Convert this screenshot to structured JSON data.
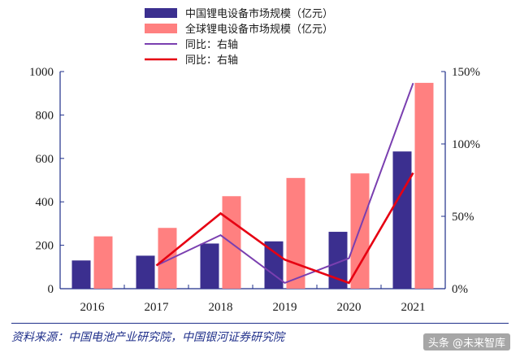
{
  "chart_data": {
    "type": "bar",
    "categories": [
      "2016",
      "2017",
      "2018",
      "2019",
      "2020",
      "2021"
    ],
    "series": [
      {
        "name": "中国锂电设备市场规模（亿元）",
        "type": "bar",
        "axis": "left",
        "color": "#3b2f8f",
        "values": [
          130,
          152,
          208,
          218,
          262,
          632
        ]
      },
      {
        "name": "全球锂电设备市场规模（亿元）",
        "type": "bar",
        "axis": "left",
        "color": "#ff8080",
        "values": [
          241,
          280,
          426,
          510,
          531,
          948
        ]
      },
      {
        "name": "同比：右轴",
        "type": "line",
        "axis": "right",
        "color": "#7a3fb0",
        "values": [
          null,
          16,
          37,
          4,
          21,
          142
        ]
      },
      {
        "name": "同比：右轴",
        "type": "line",
        "axis": "right",
        "color": "#e60012",
        "values": [
          null,
          16,
          52,
          20,
          4,
          80
        ]
      }
    ],
    "left_axis": {
      "min": 0,
      "max": 1000,
      "ticks": [
        "0",
        "200",
        "400",
        "600",
        "800",
        "1000"
      ]
    },
    "right_axis": {
      "min": 0,
      "max": 150,
      "ticks": [
        "0%",
        "50%",
        "100%",
        "150%"
      ]
    },
    "legend_position": "top-center",
    "grid": false
  },
  "source_text": "资料来源：中国电池产业研究院，中国银河证券研究院",
  "watermark_text": "头条 @未来智库"
}
